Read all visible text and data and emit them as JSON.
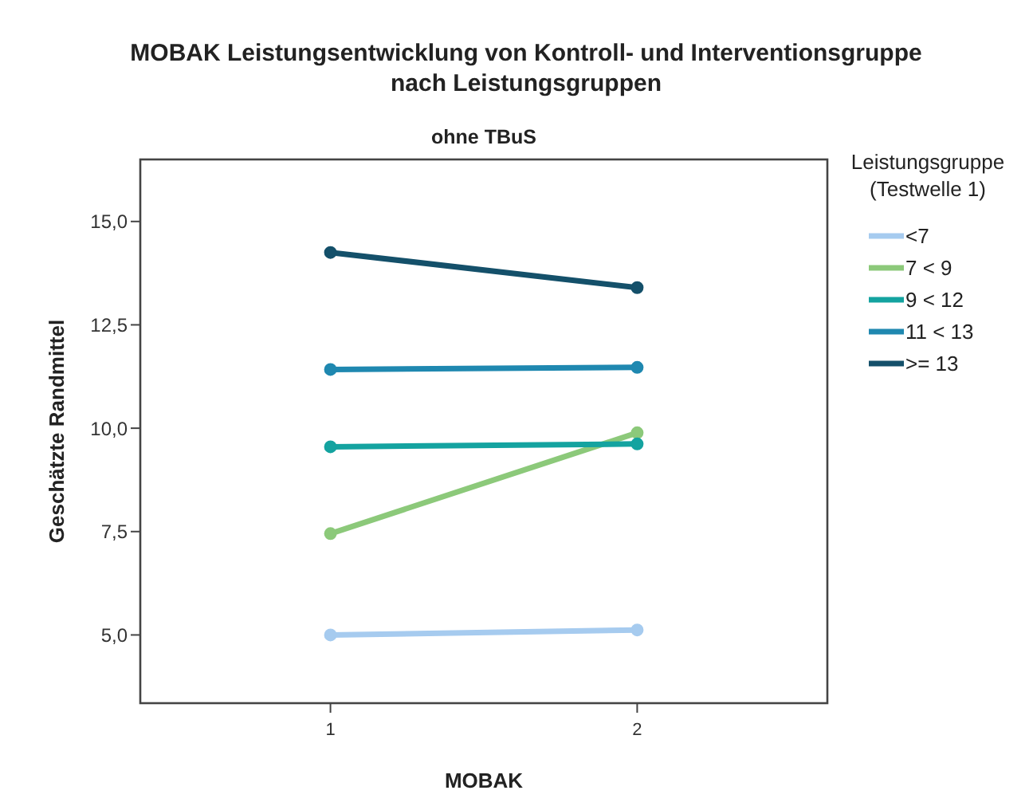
{
  "chart_data": {
    "type": "line",
    "title": "MOBAK Leistungsentwicklung von Kontroll- und Interventionsgruppe nach Leistungsgruppen",
    "subtitle": "ohne TBuS",
    "xlabel": "MOBAK",
    "ylabel": "Geschätzte Randmittel",
    "legend_title": "Leistungsgruppe (Testwelle 1)",
    "x": [
      1,
      2
    ],
    "series": [
      {
        "name": "<7",
        "color": "#a6cbef",
        "values": [
          5.0,
          5.12
        ]
      },
      {
        "name": "7 < 9",
        "color": "#8cc97a",
        "values": [
          7.45,
          9.89
        ]
      },
      {
        "name": "9 < 12",
        "color": "#14a3a0",
        "values": [
          9.55,
          9.62
        ]
      },
      {
        "name": "11 < 13",
        "color": "#1f88b0",
        "values": [
          11.42,
          11.47
        ]
      },
      {
        "name": ">= 13",
        "color": "#14506a",
        "values": [
          14.25,
          13.4
        ]
      }
    ],
    "xlim": [
      0.38,
      2.62
    ],
    "xticks": [
      1,
      2
    ],
    "ylim": [
      3.35,
      16.5
    ],
    "yticks": [
      {
        "value": 5,
        "label": "5,0"
      },
      {
        "value": 7.5,
        "label": "7,5"
      },
      {
        "value": 10,
        "label": "10,0"
      },
      {
        "value": 12.5,
        "label": "12,5"
      },
      {
        "value": 15,
        "label": "15,0"
      }
    ],
    "grid": false,
    "legend": "right",
    "marker": "circle",
    "line_style": "solid"
  }
}
